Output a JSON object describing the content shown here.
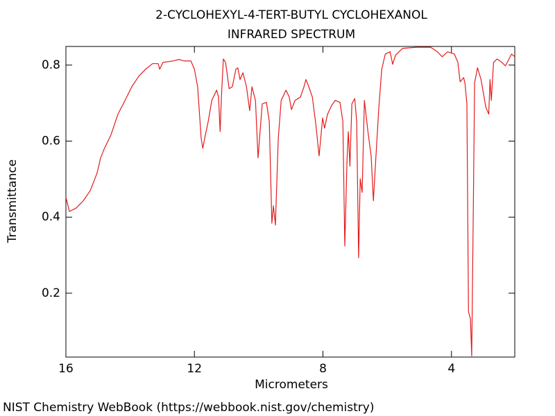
{
  "chart_data": {
    "type": "line",
    "title": "2-CYCLOHEXYL-4-TERT-BUTYL CYCLOHEXANOL",
    "subtitle": "INFRARED SPECTRUM",
    "x_label": "Micrometers",
    "y_label": "Transmittance",
    "source": "NIST Chemistry WebBook (https://webbook.nist.gov/chemistry)",
    "color": "#e41a1c",
    "xlim": [
      16,
      2.03
    ],
    "ylim": [
      0.032,
      0.849
    ],
    "xticks": [
      16,
      12,
      8,
      4
    ],
    "yticks": [
      0.2,
      0.4,
      0.6,
      0.8
    ],
    "x": [
      16,
      15.89,
      15.68,
      15.46,
      15.24,
      15.03,
      14.92,
      14.81,
      14.6,
      14.38,
      14.16,
      13.95,
      13.73,
      13.52,
      13.3,
      13.13,
      13.08,
      12.98,
      12.65,
      12.48,
      12.33,
      12.11,
      12.0,
      11.9,
      11.79,
      11.74,
      11.66,
      11.57,
      11.46,
      11.31,
      11.25,
      11.2,
      11.16,
      11.1,
      11.03,
      10.92,
      10.82,
      10.71,
      10.65,
      10.58,
      10.49,
      10.38,
      10.28,
      10.21,
      10.1,
      10.02,
      9.89,
      9.76,
      9.67,
      9.59,
      9.54,
      9.48,
      9.39,
      9.3,
      9.15,
      9.05,
      8.98,
      8.87,
      8.7,
      8.59,
      8.53,
      8.44,
      8.33,
      8.22,
      8.12,
      8.01,
      7.95,
      7.86,
      7.73,
      7.62,
      7.47,
      7.38,
      7.32,
      7.25,
      7.21,
      7.16,
      7.1,
      7.01,
      6.95,
      6.89,
      6.84,
      6.78,
      6.71,
      6.6,
      6.5,
      6.43,
      6.35,
      6.26,
      6.17,
      6.06,
      5.91,
      5.83,
      5.74,
      5.52,
      5.09,
      4.65,
      4.44,
      4.29,
      4.12,
      3.91,
      3.8,
      3.73,
      3.62,
      3.58,
      3.52,
      3.47,
      3.41,
      3.37,
      3.32,
      3.28,
      3.19,
      3.08,
      2.93,
      2.84,
      2.8,
      2.76,
      2.69,
      2.58,
      2.43,
      2.32,
      2.21,
      2.13,
      2.03
    ],
    "values": [
      0.452,
      0.415,
      0.424,
      0.443,
      0.47,
      0.516,
      0.556,
      0.579,
      0.616,
      0.671,
      0.707,
      0.743,
      0.771,
      0.789,
      0.804,
      0.804,
      0.789,
      0.807,
      0.811,
      0.815,
      0.811,
      0.811,
      0.789,
      0.743,
      0.607,
      0.581,
      0.616,
      0.652,
      0.707,
      0.734,
      0.716,
      0.625,
      0.716,
      0.816,
      0.807,
      0.738,
      0.743,
      0.789,
      0.793,
      0.762,
      0.78,
      0.743,
      0.68,
      0.743,
      0.707,
      0.556,
      0.698,
      0.702,
      0.652,
      0.384,
      0.43,
      0.379,
      0.607,
      0.707,
      0.734,
      0.716,
      0.683,
      0.707,
      0.716,
      0.743,
      0.762,
      0.743,
      0.716,
      0.643,
      0.561,
      0.661,
      0.634,
      0.67,
      0.694,
      0.707,
      0.702,
      0.652,
      0.324,
      0.552,
      0.625,
      0.534,
      0.698,
      0.712,
      0.652,
      0.293,
      0.501,
      0.465,
      0.707,
      0.625,
      0.561,
      0.443,
      0.561,
      0.689,
      0.789,
      0.829,
      0.835,
      0.802,
      0.826,
      0.844,
      0.847,
      0.847,
      0.835,
      0.822,
      0.835,
      0.829,
      0.807,
      0.756,
      0.767,
      0.753,
      0.698,
      0.151,
      0.133,
      0.035,
      0.424,
      0.753,
      0.793,
      0.762,
      0.689,
      0.671,
      0.762,
      0.707,
      0.807,
      0.816,
      0.807,
      0.798,
      0.816,
      0.829,
      0.822
    ]
  }
}
